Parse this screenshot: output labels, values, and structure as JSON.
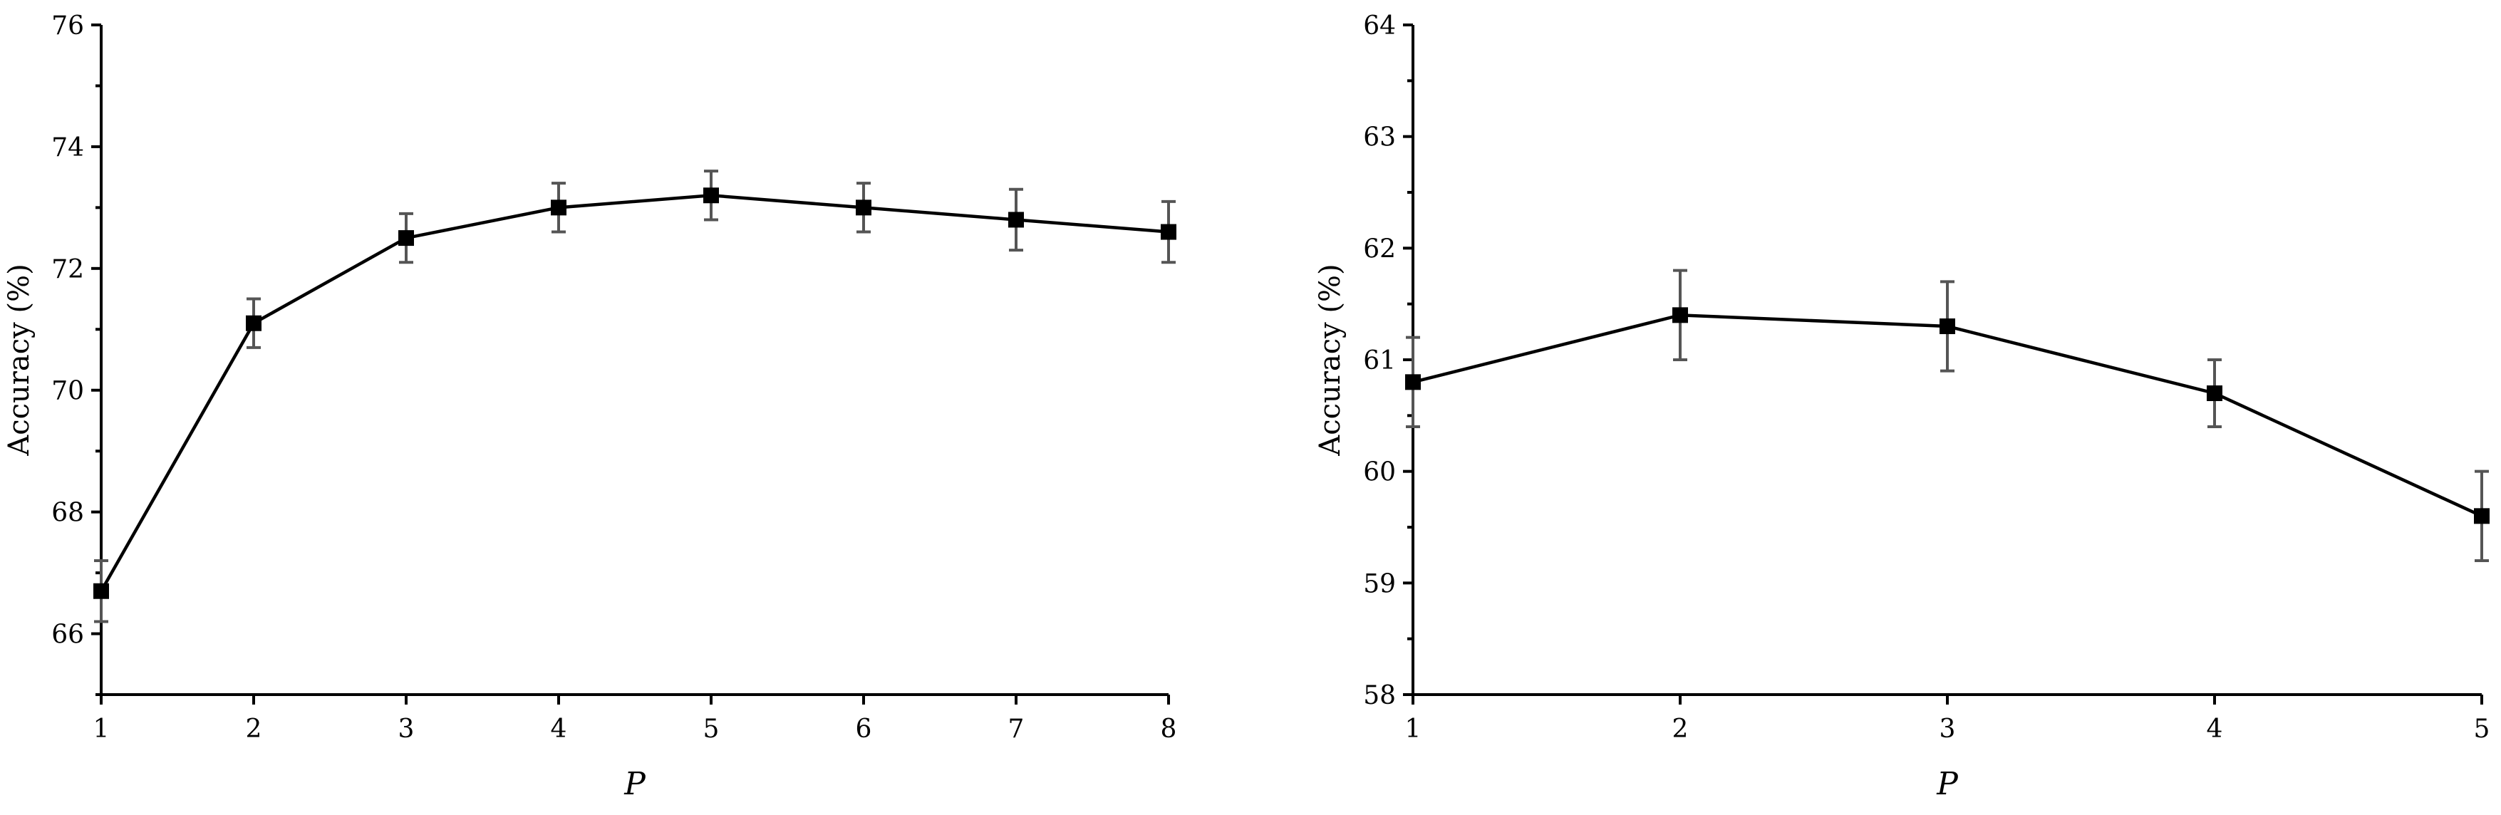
{
  "chart_data": [
    {
      "type": "line",
      "xlabel": "P",
      "ylabel": "Accuracy (%)",
      "xlim": [
        1,
        8
      ],
      "ylim": [
        65,
        76
      ],
      "x_ticks": [
        1,
        2,
        3,
        4,
        5,
        6,
        7,
        8
      ],
      "y_ticks": [
        66,
        68,
        70,
        72,
        74,
        76
      ],
      "y_minor_step": 1,
      "x": [
        1,
        2,
        3,
        4,
        5,
        6,
        7,
        8
      ],
      "series": [
        {
          "values": [
            66.7,
            71.1,
            72.5,
            73.0,
            73.2,
            73.0,
            72.8,
            72.6
          ],
          "errors": [
            0.5,
            0.4,
            0.4,
            0.4,
            0.4,
            0.4,
            0.5,
            0.5
          ],
          "marker": "square",
          "color": "#000000"
        }
      ],
      "grid": false
    },
    {
      "type": "line",
      "xlabel": "P",
      "ylabel": "Accuracy (%)",
      "xlim": [
        1,
        5
      ],
      "ylim": [
        58,
        64
      ],
      "x_ticks": [
        1,
        2,
        3,
        4,
        5
      ],
      "y_ticks": [
        58,
        59,
        60,
        61,
        62,
        63,
        64
      ],
      "y_minor_step": 0.5,
      "x": [
        1,
        2,
        3,
        4,
        5
      ],
      "series": [
        {
          "values": [
            60.8,
            61.4,
            61.3,
            60.7,
            59.6
          ],
          "errors": [
            0.4,
            0.4,
            0.4,
            0.3,
            0.4
          ],
          "marker": "square",
          "color": "#000000"
        }
      ],
      "grid": false
    }
  ]
}
